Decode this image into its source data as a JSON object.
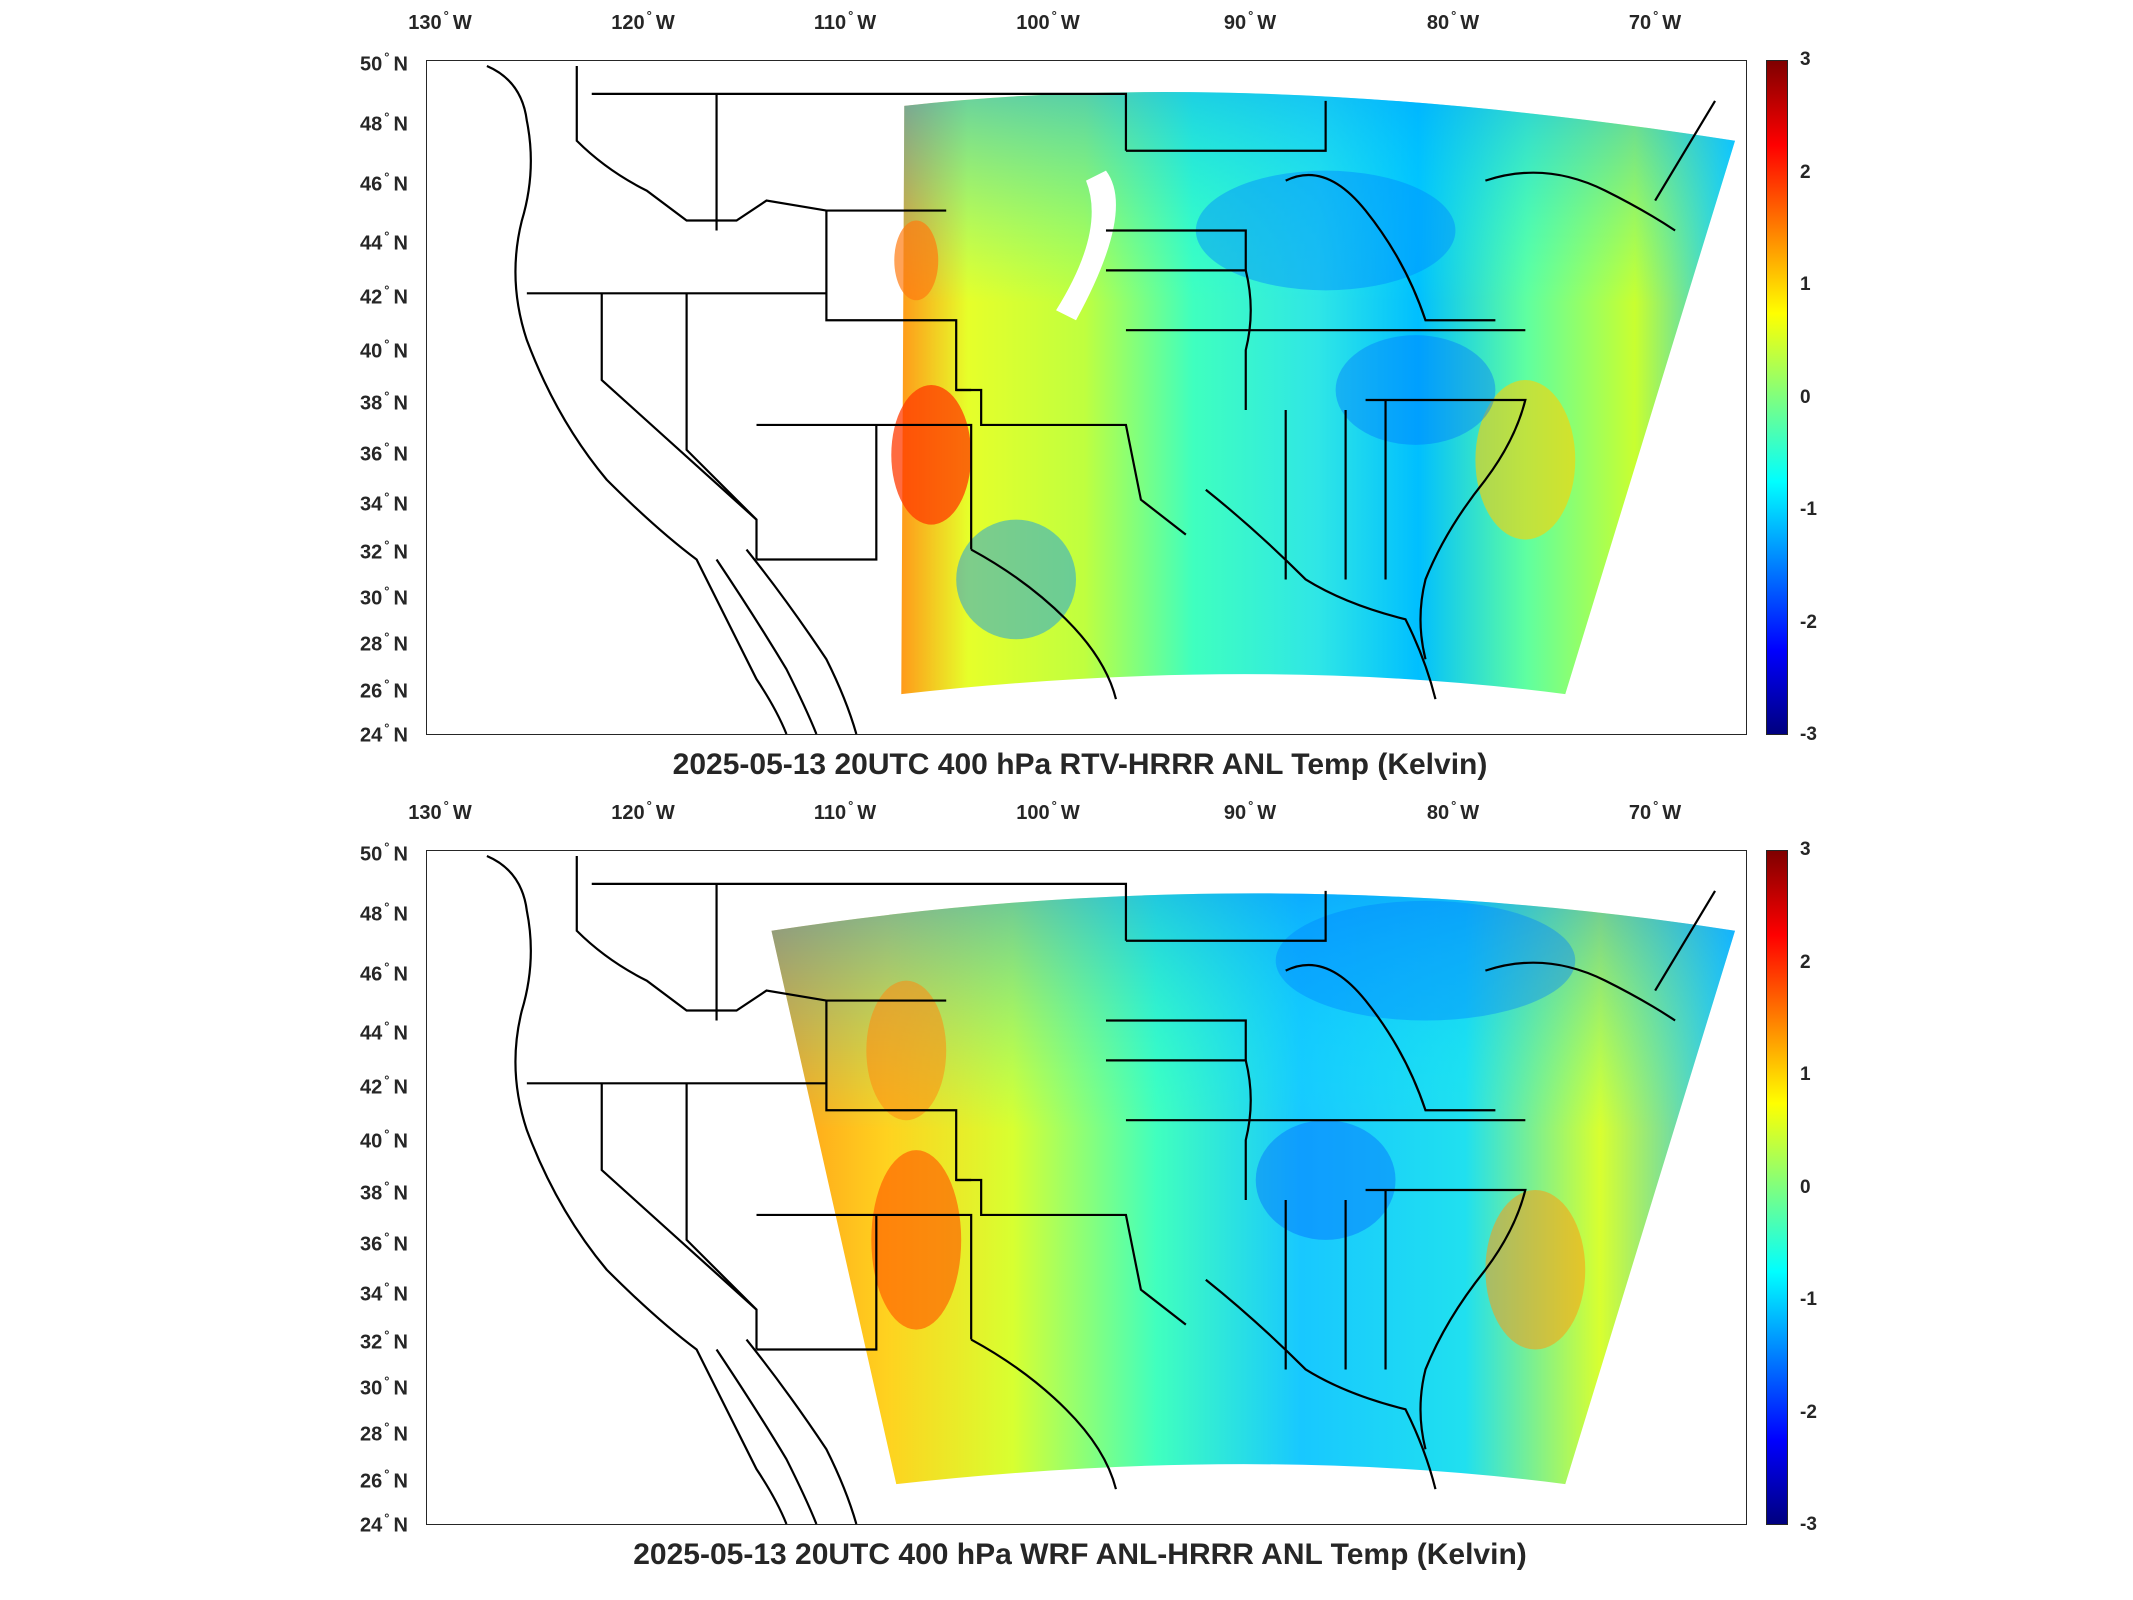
{
  "panels": [
    {
      "title": "2025-05-13 20UTC 400 hPa RTV-HRRR ANL Temp (Kelvin)",
      "lon_ticks": [
        "130",
        "120",
        "110",
        "100",
        "90",
        "80",
        "70"
      ],
      "lon_suffix": "W",
      "lat_ticks": [
        "50",
        "48",
        "46",
        "44",
        "42",
        "40",
        "38",
        "36",
        "34",
        "32",
        "30",
        "28",
        "26",
        "24"
      ],
      "lat_suffix": "N",
      "colorbar": {
        "ticks": [
          "3",
          "2",
          "1",
          "0",
          "-1",
          "-2",
          "-3"
        ],
        "min": -3,
        "max": 3,
        "colormap": "jet"
      }
    },
    {
      "title": "2025-05-13 20UTC 400 hPa WRF ANL-HRRR ANL Temp (Kelvin)",
      "lon_ticks": [
        "130",
        "120",
        "110",
        "100",
        "90",
        "80",
        "70"
      ],
      "lon_suffix": "W",
      "lat_ticks": [
        "50",
        "48",
        "46",
        "44",
        "42",
        "40",
        "38",
        "36",
        "34",
        "32",
        "30",
        "28",
        "26",
        "24"
      ],
      "lat_suffix": "N",
      "colorbar": {
        "ticks": [
          "3",
          "2",
          "1",
          "0",
          "-1",
          "-2",
          "-3"
        ],
        "min": -3,
        "max": 3,
        "colormap": "jet"
      }
    }
  ],
  "colors": {
    "frame": "#262626",
    "land_lines": "#000000",
    "background": "#ffffff"
  }
}
